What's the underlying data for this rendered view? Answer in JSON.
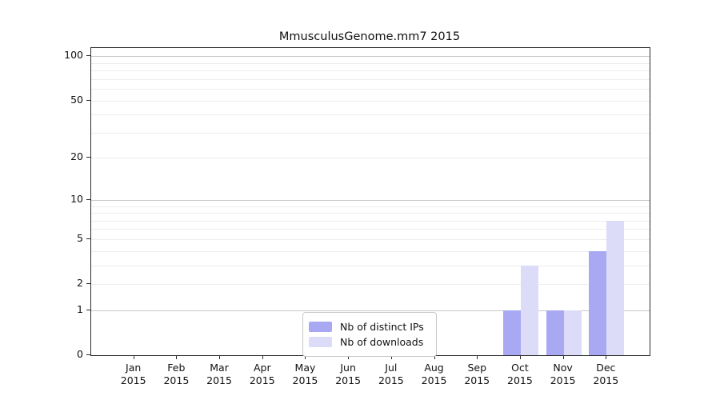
{
  "chart_data": {
    "type": "bar",
    "title": "MmusculusGenome.mm7 2015",
    "scale": "log1p",
    "year_label": "2015",
    "categories": [
      "Jan",
      "Feb",
      "Mar",
      "Apr",
      "May",
      "Jun",
      "Jul",
      "Aug",
      "Sep",
      "Oct",
      "Nov",
      "Dec"
    ],
    "series": [
      {
        "name": "Nb of distinct IPs",
        "color": "#a9a9f3",
        "values": [
          0,
          0,
          0,
          0,
          0,
          0,
          0,
          0,
          0,
          1,
          1,
          4
        ]
      },
      {
        "name": "Nb of downloads",
        "color": "#dcdcf8",
        "values": [
          0,
          0,
          0,
          0,
          0,
          0,
          0,
          0,
          0,
          3,
          1,
          7
        ]
      }
    ],
    "ylim": [
      0,
      100
    ],
    "yticks": [
      0,
      1,
      2,
      5,
      10,
      20,
      50,
      100
    ],
    "grid_major": [
      1,
      10,
      100
    ],
    "grid_minor": [
      2,
      3,
      4,
      5,
      6,
      7,
      8,
      9,
      20,
      30,
      40,
      50,
      60,
      70,
      80,
      90
    ],
    "grid": "horizontal",
    "legend_position": "lower center"
  }
}
